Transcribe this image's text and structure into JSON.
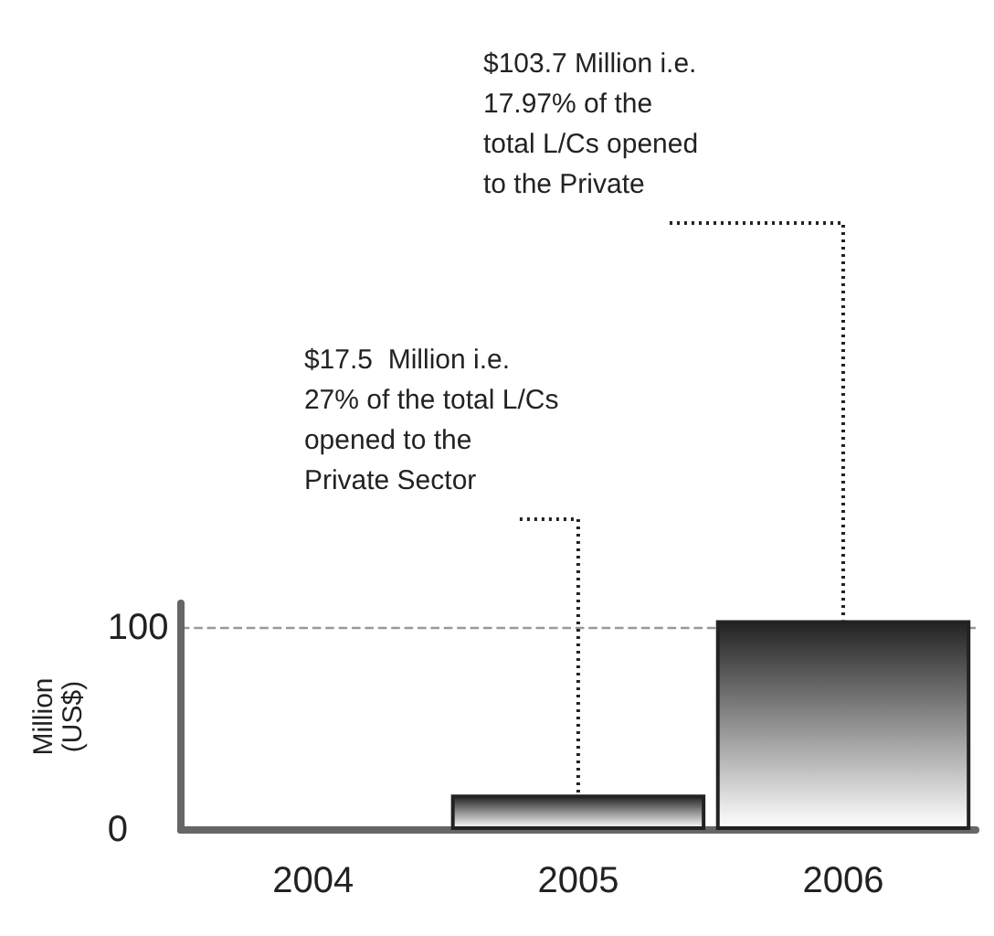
{
  "chart_data": {
    "type": "bar",
    "ylabel": "Million\n(US$)",
    "categories": [
      "2004",
      "2005",
      "2006"
    ],
    "values": [
      null,
      17.5,
      103.7
    ],
    "color": "#222222",
    "ylim": [
      0,
      112
    ],
    "yticks": [
      0,
      100
    ],
    "grid": "y",
    "annotations": [
      {
        "text": "$17.5  Million i.e.\n27% of the total L/Cs\nopened to the\nPrivate Sector",
        "x": "2005",
        "y": 17.5
      },
      {
        "text": "$103.7 Million i.e.\n17.97% of the\ntotal L/Cs opened\nto the Private",
        "x": "2006",
        "y": 103.7
      }
    ]
  }
}
